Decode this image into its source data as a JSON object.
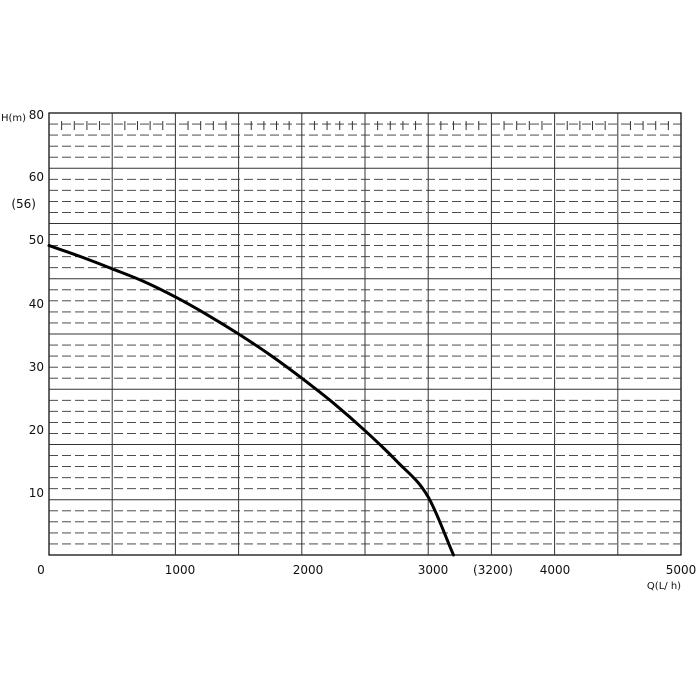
{
  "chart_data": {
    "type": "line",
    "title": "",
    "xlabel": "Q(L/ h)",
    "ylabel": "H(m)",
    "xlim": [
      0,
      5000
    ],
    "ylim": [
      0,
      80
    ],
    "x_tick_labels": [
      "0",
      "1000",
      "2000",
      "3000",
      "4000",
      "5000"
    ],
    "y_tick_labels": [
      "10",
      "20",
      "30",
      "40",
      "50",
      "60",
      "80"
    ],
    "annotations": {
      "shutoff_head": "(56)",
      "max_flow": "(3200)"
    },
    "grid": true,
    "series": [
      {
        "x": [
          0,
          250,
          500,
          750,
          1000,
          1250,
          1500,
          1750,
          2000,
          2250,
          2500,
          2750,
          3000,
          3200
        ],
        "y": [
          56,
          54,
          51.8,
          49.5,
          46.7,
          43.5,
          40,
          36.2,
          32,
          27.5,
          22.5,
          17,
          10.5,
          0
        ]
      }
    ],
    "line_color": "#000000",
    "grid_color": "#333333"
  }
}
